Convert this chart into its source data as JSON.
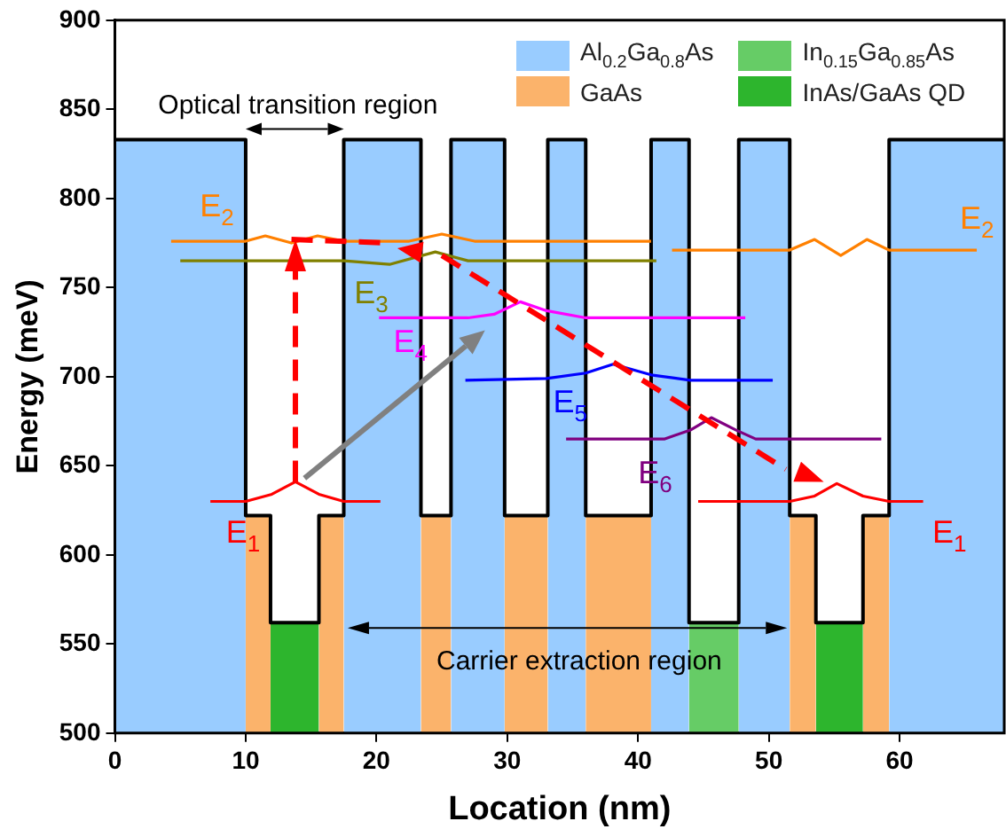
{
  "chart_data": {
    "type": "line",
    "xlabel": "Location (nm)",
    "ylabel": "Energy (meV)",
    "xlim": [
      0,
      68
    ],
    "ylim": [
      500,
      900
    ],
    "xticks": [
      0,
      10,
      20,
      30,
      40,
      50,
      60
    ],
    "yticks": [
      500,
      550,
      600,
      650,
      700,
      750,
      800,
      850,
      900
    ],
    "grid": false,
    "legend": "top right",
    "marker": "none",
    "series": [
      {
        "name": "Al$_{0.2}$Ga$_{0.8}$As",
        "type": "area",
        "color": "#99ccff",
        "x": [
          0,
          10,
          14,
          17.5,
          23.4,
          24.5,
          25.7,
          29.8,
          31.5,
          33.1,
          36,
          38.5,
          41,
          43.9,
          45.8,
          47.7,
          51.6,
          55,
          59.2,
          68
        ],
        "values": [
          833,
          833,
          null,
          833,
          833,
          null,
          833,
          833,
          null,
          833,
          833,
          null,
          833,
          833,
          null,
          833,
          833,
          null,
          833,
          833
        ]
      },
      {
        "name": "GaAs",
        "type": "area",
        "color": "#fbb36b",
        "x": [
          10,
          11.9,
          13,
          15.6,
          17.5,
          20,
          23.4,
          25.7,
          27,
          29.8,
          33.1,
          34,
          36,
          41,
          48,
          51.6,
          53.6,
          55,
          57.2,
          59.2
        ],
        "values": [
          622,
          622,
          null,
          622,
          622,
          null,
          622,
          622,
          null,
          622,
          622,
          null,
          622,
          622,
          null,
          622,
          622,
          null,
          622,
          622
        ]
      },
      {
        "name": "In$_{0.15}$Ga$_{0.85}$As",
        "type": "area",
        "color": "#66cc66",
        "x": [
          43.9,
          47.7
        ],
        "values": [
          562,
          562
        ]
      },
      {
        "name": "InAs/GaAs QD",
        "type": "area",
        "color": "#2db52d",
        "x": [
          11.9,
          15.6,
          30,
          53.6,
          57.2
        ],
        "values": [
          562,
          562,
          null,
          562,
          562
        ]
      },
      {
        "color": "#000000",
        "x": [
          0,
          10,
          10,
          11.9,
          11.9,
          15.6,
          15.6,
          17.5,
          17.5,
          23.4,
          23.4,
          25.7,
          25.7,
          29.8,
          29.8,
          33.1,
          33.1,
          36,
          36,
          41,
          41,
          43.9,
          43.9,
          47.7,
          47.7,
          51.6,
          51.6,
          53.6,
          53.6,
          57.2,
          57.2,
          59.2,
          59.2,
          68
        ],
        "values": [
          833,
          833,
          622,
          622,
          562,
          562,
          622,
          622,
          833,
          833,
          622,
          622,
          833,
          833,
          622,
          622,
          833,
          833,
          622,
          622,
          833,
          833,
          562,
          562,
          833,
          833,
          622,
          622,
          562,
          562,
          622,
          622,
          833,
          833
        ]
      },
      {
        "name": "E$_{2}$",
        "color": "#ff8000",
        "x": [
          4.3,
          10,
          11.5,
          13.5,
          15.5,
          17.5,
          22.5,
          25,
          27.5,
          41
        ],
        "values": [
          776,
          776,
          779,
          775,
          779,
          776,
          776,
          780,
          776,
          776
        ]
      },
      {
        "name": "E$_{2}$",
        "color": "#ff8000",
        "x": [
          42.6,
          51.6,
          53.5,
          55.5,
          57.5,
          59.2,
          65.9
        ],
        "values": [
          771,
          771,
          777,
          768,
          777,
          771,
          771
        ]
      },
      {
        "name": "E$_{3}$",
        "color": "#808000",
        "x": [
          5,
          17.5,
          21,
          24.5,
          27,
          41.4
        ],
        "values": [
          765,
          765,
          763,
          770,
          765,
          765
        ]
      },
      {
        "name": "E$_{4}$",
        "color": "#ff00ff",
        "x": [
          20.2,
          27,
          29,
          31,
          33,
          36,
          48.2
        ],
        "values": [
          733,
          733,
          735,
          742,
          737,
          733,
          733
        ]
      },
      {
        "name": "E$_{5}$",
        "color": "#0000ff",
        "x": [
          26.8,
          33,
          36,
          38.1,
          41,
          44,
          50.3
        ],
        "values": [
          698,
          699,
          702,
          707,
          701,
          698,
          698
        ]
      },
      {
        "name": "E$_{6}$",
        "color": "#800080",
        "x": [
          34.5,
          42,
          44,
          45.6,
          47.5,
          49,
          58.6
        ],
        "values": [
          665,
          665,
          670,
          677,
          670,
          665,
          665
        ]
      },
      {
        "name": "E$_{1}$",
        "color": "#ff0000",
        "x": [
          7.3,
          10,
          12,
          13.8,
          15.6,
          17.5,
          20.3
        ],
        "values": [
          630,
          630,
          634,
          641,
          634,
          630,
          630
        ]
      },
      {
        "name": "E$_{1}$",
        "color": "#ff0000",
        "x": [
          44.6,
          51.6,
          53.5,
          55.2,
          57.2,
          59.2,
          61.8
        ],
        "values": [
          630,
          630,
          633,
          640,
          633,
          630,
          630
        ]
      }
    ],
    "annotations": [
      "Optical transition region",
      "Carrier extraction region"
    ]
  }
}
